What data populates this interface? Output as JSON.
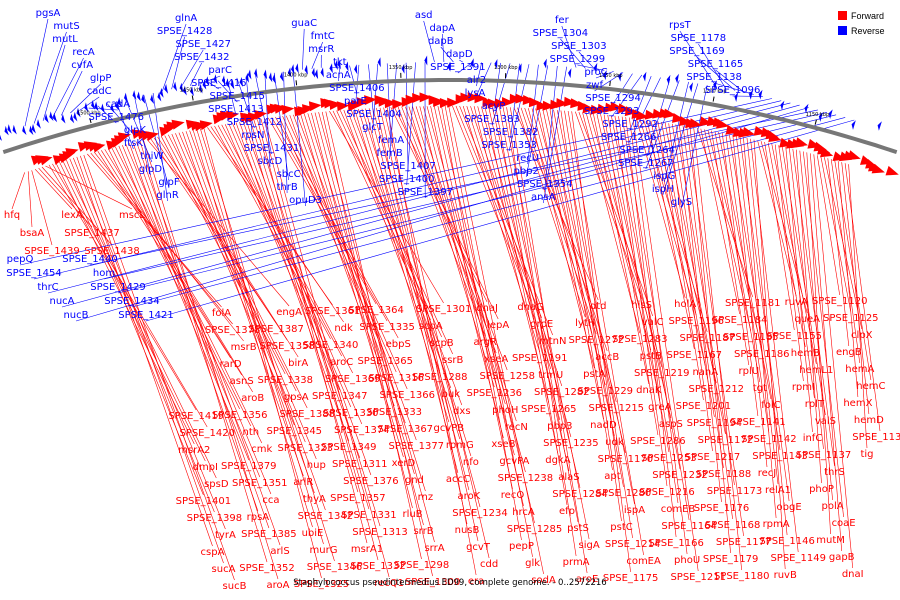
{
  "legend": [
    {
      "label": "Forward",
      "color": "#ff0000"
    },
    {
      "label": "Reverse",
      "color": "#0000ff"
    }
  ],
  "caption": "Staphylococcus pseudintermedius ED99, complete genome. - 0..2572216",
  "scale_ticks": [
    "1500 kbp",
    "1450 kbp",
    "1400 kbp",
    "1350 kbp",
    "1300 kbp",
    "1250 kbp",
    "1200 kbp",
    "1150 kbp"
  ],
  "reverse_labels": [
    "pgsA",
    "mutS",
    "mutL",
    "recA",
    "cvfA",
    "glpP",
    "cadC",
    "cadA",
    "SPSE_1476",
    "glpK",
    "ftsK",
    "thiW",
    "glpD",
    "glpF",
    "glnR",
    "glnA",
    "SPSE_1428",
    "SPSE_1427",
    "SPSE_1432",
    "parC",
    "SPSE_1416",
    "SPSE_1415",
    "SPSE_1413",
    "SPSE_1412",
    "rpsN",
    "SPSE_1431",
    "sbcD",
    "sbcC",
    "thrB",
    "opuD3",
    "guaC",
    "fmtC",
    "msrR",
    "tkt",
    "acnA",
    "SPSE_1406",
    "parE",
    "SPSE_1404",
    "glcT",
    "femA",
    "femB",
    "SPSE_1407",
    "SPSE_1400",
    "SPSE_1397",
    "asd",
    "dapA",
    "dapB",
    "dapD",
    "SPSE_1391",
    "alr2",
    "lysA",
    "acyP",
    "SPSE_1383",
    "SPSE_1382",
    "SPSE_1353",
    "recU",
    "pbp2",
    "SPSE_1354",
    "ansA",
    "fer",
    "SPSE_1304",
    "SPSE_1303",
    "SPSE_1299",
    "proC",
    "zwf",
    "SPSE_1294",
    "SPSE_1293",
    "SPSE_1292",
    "SPSE_1266",
    "SPSE_1264",
    "SPSE_1267",
    "ispG",
    "ispH",
    "glyS",
    "rpsT",
    "SPSE_1178",
    "SPSE_1169",
    "SPSE_1165",
    "SPSE_1138",
    "SPSE_1096",
    "pepQ",
    "SPSE_1454",
    "thrC",
    "nucA",
    "nucB",
    "SPSE_1440",
    "hom",
    "SPSE_1429",
    "SPSE_1434",
    "SPSE_1421"
  ],
  "forward_labels": [
    "hfq",
    "bsaA",
    "SPSE_1439",
    "lexA",
    "SPSE_1437",
    "SPSE_1438",
    "mscL",
    "SPSE_1419",
    "SPSE_1420",
    "msrA2",
    "dmpI",
    "spsD",
    "SPSE_1401",
    "SPSE_1398",
    "tyrA",
    "cspA",
    "sucA",
    "sucB",
    "folA",
    "SPSE_1378",
    "msrB",
    "rarD",
    "asnS",
    "aroB",
    "SPSE_1356",
    "nth",
    "cmk",
    "SPSE_1379",
    "SPSE_1351",
    "cca",
    "rpsA",
    "SPSE_1385",
    "arlS",
    "SPSE_1352",
    "aroA",
    "engA",
    "SPSE_1387",
    "SPSE_1358",
    "birA",
    "SPSE_1338",
    "gpsA",
    "SPSE_1388",
    "SPSE_1345",
    "SPSE_1323",
    "hup",
    "arlR",
    "thyA",
    "SPSE_1342",
    "ubiE",
    "murG",
    "SPSE_1346",
    "SPSE_1325",
    "SPSE_1361",
    "ndk",
    "SPSE_1340",
    "aroC",
    "SPSE_1369",
    "SPSE_1347",
    "SPSE_1330",
    "SPSE_1374",
    "SPSE_1349",
    "SPSE_1311",
    "SPSE_1376",
    "SPSE_1357",
    "SPSE_1331",
    "SPSE_1313",
    "msrA1",
    "SPSE_1332",
    "recQ1",
    "SPSE_1364",
    "SPSE_1335",
    "ebpS",
    "SPSE_1365",
    "SPSE_1316",
    "SPSE_1366",
    "SPSE_1333",
    "SPSE_1367",
    "SPSE_1377",
    "xerD",
    "gnd",
    "rnz",
    "rluB",
    "srrB",
    "srrA",
    "SPSE_1298",
    "SPSE_1300",
    "SPSE_1301",
    "scpA",
    "scpB",
    "ssrB",
    "SPSE_1288",
    "buk",
    "dxs",
    "gcvPB",
    "rpmG",
    "nfo",
    "accC",
    "aroK",
    "SPSE_1234",
    "nusB",
    "gcvT",
    "cdd",
    "era",
    "dnaJ",
    "lepA",
    "argR",
    "xseA",
    "SPSE_1258",
    "SPSE_1236",
    "phoH",
    "recN",
    "xseB",
    "gcvPA",
    "SPSE_1238",
    "recO",
    "hrcA",
    "SPSE_1285",
    "pepP",
    "glk",
    "sodA",
    "dnaG",
    "grpE",
    "mtnN",
    "SPSE_1191",
    "trmU",
    "SPSE_1282",
    "SPSE_1265",
    "pbp3",
    "SPSE_1235",
    "dgkA",
    "alaS",
    "SPSE_1284",
    "efp",
    "pstS",
    "sigA",
    "prmA",
    "aroE",
    "dtd",
    "lytH",
    "SPSE_1272",
    "accB",
    "pstA",
    "SPSE_1229",
    "SPSE_1215",
    "nadD",
    "udk",
    "SPSE_1170",
    "apt",
    "SPSE_1280",
    "ispA",
    "pstC",
    "SPSE_1214",
    "comEA",
    "SPSE_1175",
    "hisS",
    "valC",
    "SPSE_1283",
    "pstB",
    "SPSE_1219",
    "dnaK",
    "greA",
    "aspS",
    "SPSE_1286",
    "SPSE_1253",
    "SPSE_1232",
    "SPSE_1216",
    "comEB",
    "SPSE_1164",
    "SPSE_1166",
    "phoU",
    "SPSE_1211",
    "holA",
    "SPSE_1196",
    "SPSE_1187",
    "SPSE_1167",
    "nanA",
    "SPSE_1212",
    "SPSE_1201",
    "SPSE_1194",
    "SPSE_1172",
    "SPSE_1217",
    "SPSE_1188",
    "SPSE_1173",
    "SPSE_1176",
    "SPSE_1168",
    "SPSE_1177",
    "SPSE_1179",
    "SPSE_1180",
    "SPSE_1181",
    "SPSE_1184",
    "SPSE_1185",
    "SPSE_1186",
    "rplU",
    "tgt",
    "folC",
    "SPSE_1141",
    "SPSE_1142",
    "SPSE_1143",
    "recJ",
    "relA1",
    "obgE",
    "rpmA",
    "SPSE_1146",
    "SPSE_1149",
    "ruvB",
    "ruvA",
    "queA",
    "SPSE_1155",
    "hemB",
    "hemL1",
    "rpmI",
    "rplT",
    "valS",
    "infC",
    "SPSE_1137",
    "thrS",
    "phoP",
    "polA",
    "coaE",
    "mutM",
    "gapB",
    "dnaI",
    "SPSE_1120",
    "SPSE_1125",
    "clpX",
    "engB",
    "hemA",
    "hemC",
    "hemX",
    "hemD",
    "SPSE_1136",
    "tig"
  ]
}
